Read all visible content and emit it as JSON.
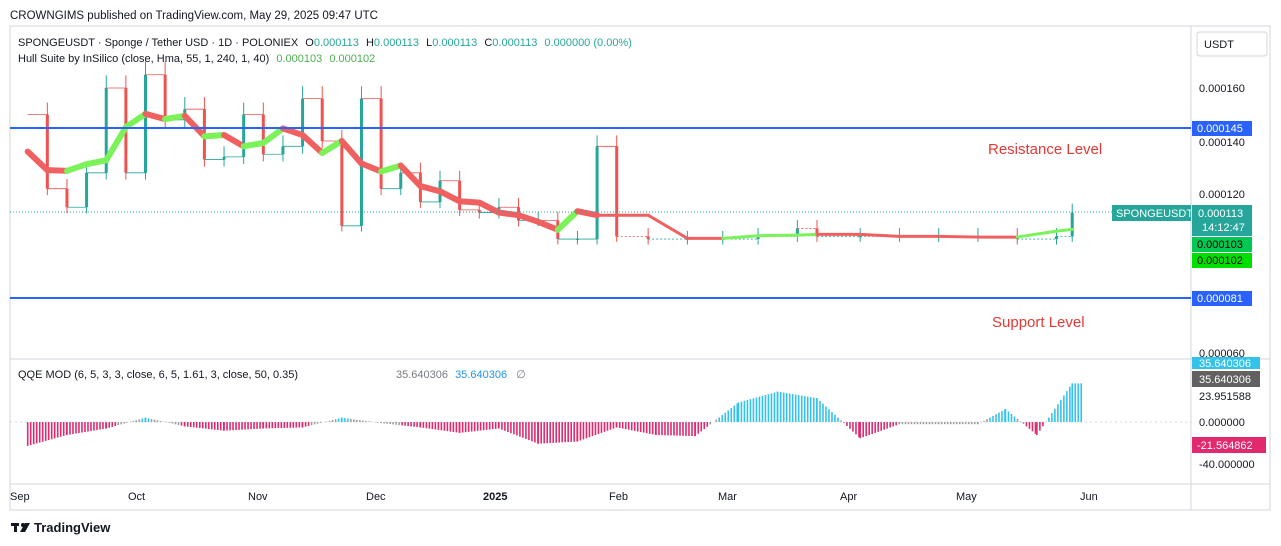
{
  "header": {
    "published": "CROWNGIMS published on TradingView.com, May 29, 2025 09:47 UTC"
  },
  "legend": {
    "symbol_line": "SPONGEUSDT · Sponge / Tether USD · 1D · POLONIEX",
    "open_label": "O",
    "open_value": "0.000113",
    "high_label": "H",
    "high_value": "0.000113",
    "low_label": "L",
    "low_value": "0.000113",
    "close_label": "C",
    "close_value": "0.000113",
    "change": "0.000000 (0.00%)",
    "hull_name": "Hull Suite by InSilico (close, Hma, 55, 1, 240, 1, 40)",
    "hull_val1": "0.000103",
    "hull_val2": "0.000102"
  },
  "qqe": {
    "name": "QQE MOD (6, 5, 3, 3, close, 6, 5, 1.61, 3, close, 50, 0.35)",
    "val1": "35.640306",
    "val2": "35.640306",
    "ticks": [
      "35.640306",
      "23.951588",
      "0.000000",
      "-40.000000"
    ],
    "badge_gray": "35.640306",
    "badge_red": "-21.564862"
  },
  "price_axis": {
    "currency": "USDT",
    "ticks": [
      "0.000160",
      "0.000140",
      "0.000120",
      "0.000060"
    ]
  },
  "badges": {
    "resistance": "0.000145",
    "support": "0.000081",
    "symbol": "SPONGEUSDT",
    "price": "0.000113",
    "countdown": "14:12:47",
    "hull1": "0.000103",
    "hull2": "0.000102"
  },
  "annotations": {
    "resistance": "Resistance Level",
    "support": "Support Level"
  },
  "time_axis": [
    "Sep",
    "Oct",
    "Nov",
    "Dec",
    "2025",
    "Feb",
    "Mar",
    "Apr",
    "May",
    "Jun"
  ],
  "footer": {
    "brand": "TradingView"
  },
  "colors": {
    "up": "#26a69a",
    "down": "#ef5350",
    "level": "#2962ff",
    "hull_up": "#7cf25a",
    "hull_down": "#f06060",
    "qqe_up": "#33c3ea",
    "qqe_down": "#e0296e",
    "qqe_neutral": "#9e9e9e"
  },
  "chart_data": [
    {
      "type": "candlestick",
      "title": "SPONGEUSDT · Sponge / Tether USD · 1D · POLONIEX",
      "x": [
        "Sep",
        "Oct",
        "Nov",
        "Dec",
        "2025",
        "Feb",
        "Mar",
        "Apr",
        "May",
        "Jun"
      ],
      "ylim": [
        5.8e-05,
        0.000172
      ],
      "close_series": [
        {
          "date": "2024-09-05",
          "close": 0.00015
        },
        {
          "date": "2024-09-10",
          "close": 0.000122
        },
        {
          "date": "2024-09-15",
          "close": 0.000115
        },
        {
          "date": "2024-09-20",
          "close": 0.000128
        },
        {
          "date": "2024-09-25",
          "close": 0.00016
        },
        {
          "date": "2024-09-30",
          "close": 0.000128
        },
        {
          "date": "2024-10-05",
          "close": 0.000165
        },
        {
          "date": "2024-10-10",
          "close": 0.000148
        },
        {
          "date": "2024-10-15",
          "close": 0.000152
        },
        {
          "date": "2024-10-20",
          "close": 0.000133
        },
        {
          "date": "2024-10-25",
          "close": 0.000134
        },
        {
          "date": "2024-10-30",
          "close": 0.00015
        },
        {
          "date": "2024-11-04",
          "close": 0.000135
        },
        {
          "date": "2024-11-09",
          "close": 0.000138
        },
        {
          "date": "2024-11-14",
          "close": 0.000156
        },
        {
          "date": "2024-11-19",
          "close": 0.00014
        },
        {
          "date": "2024-11-24",
          "close": 0.000108
        },
        {
          "date": "2024-11-29",
          "close": 0.000156
        },
        {
          "date": "2024-12-04",
          "close": 0.000122
        },
        {
          "date": "2024-12-09",
          "close": 0.000128
        },
        {
          "date": "2024-12-14",
          "close": 0.000117
        },
        {
          "date": "2024-12-19",
          "close": 0.000125
        },
        {
          "date": "2024-12-24",
          "close": 0.000114
        },
        {
          "date": "2024-12-29",
          "close": 0.000113
        },
        {
          "date": "2025-01-03",
          "close": 0.000115
        },
        {
          "date": "2025-01-08",
          "close": 0.00011
        },
        {
          "date": "2025-01-13",
          "close": 0.00011
        },
        {
          "date": "2025-01-18",
          "close": 0.000103
        },
        {
          "date": "2025-01-23",
          "close": 0.000103
        },
        {
          "date": "2025-01-28",
          "close": 0.000138
        },
        {
          "date": "2025-02-02",
          "close": 0.000104
        },
        {
          "date": "2025-02-10",
          "close": 0.000103
        },
        {
          "date": "2025-02-20",
          "close": 0.000103
        },
        {
          "date": "2025-03-01",
          "close": 0.000103
        },
        {
          "date": "2025-03-10",
          "close": 0.000104
        },
        {
          "date": "2025-03-20",
          "close": 0.000107
        },
        {
          "date": "2025-03-25",
          "close": 0.000104
        },
        {
          "date": "2025-04-05",
          "close": 0.000104
        },
        {
          "date": "2025-04-15",
          "close": 0.000104
        },
        {
          "date": "2025-04-25",
          "close": 0.000104
        },
        {
          "date": "2025-05-05",
          "close": 0.000104
        },
        {
          "date": "2025-05-15",
          "close": 0.000103
        },
        {
          "date": "2025-05-25",
          "close": 0.000104
        },
        {
          "date": "2025-05-29",
          "close": 0.000113
        }
      ],
      "levels": [
        {
          "name": "Resistance Level",
          "value": 0.000145
        },
        {
          "name": "Support Level",
          "value": 8.1e-05
        }
      ],
      "series": [
        {
          "name": "Hull Suite by InSilico (close, Hma, 55, 1, 240, 1, 40)",
          "last": [
            0.000103,
            0.000102
          ]
        }
      ],
      "last_price": 0.000113
    },
    {
      "type": "histogram",
      "title": "QQE MOD (6, 5, 3, 3, close, 6, 5, 1.61, 3, close, 50, 0.35)",
      "ylim": [
        -50,
        40
      ],
      "values": [
        {
          "date": "2024-09-05",
          "value": -22
        },
        {
          "date": "2024-09-15",
          "value": -12
        },
        {
          "date": "2024-09-25",
          "value": -6
        },
        {
          "date": "2024-10-05",
          "value": 4
        },
        {
          "date": "2024-10-15",
          "value": -4
        },
        {
          "date": "2024-10-25",
          "value": -8
        },
        {
          "date": "2024-11-04",
          "value": -6
        },
        {
          "date": "2024-11-14",
          "value": -5
        },
        {
          "date": "2024-11-24",
          "value": 4
        },
        {
          "date": "2024-12-04",
          "value": -1
        },
        {
          "date": "2024-12-14",
          "value": -5
        },
        {
          "date": "2024-12-24",
          "value": -10
        },
        {
          "date": "2025-01-03",
          "value": -6
        },
        {
          "date": "2025-01-13",
          "value": -20
        },
        {
          "date": "2025-01-23",
          "value": -18
        },
        {
          "date": "2025-02-02",
          "value": -5
        },
        {
          "date": "2025-02-12",
          "value": -12
        },
        {
          "date": "2025-02-22",
          "value": -13
        },
        {
          "date": "2025-03-05",
          "value": 18
        },
        {
          "date": "2025-03-15",
          "value": 28
        },
        {
          "date": "2025-03-25",
          "value": 22
        },
        {
          "date": "2025-04-05",
          "value": -15
        },
        {
          "date": "2025-04-15",
          "value": -2
        },
        {
          "date": "2025-04-25",
          "value": -2
        },
        {
          "date": "2025-05-05",
          "value": -2
        },
        {
          "date": "2025-05-12",
          "value": 12
        },
        {
          "date": "2025-05-20",
          "value": -12
        },
        {
          "date": "2025-05-29",
          "value": 35.640306
        }
      ]
    }
  ]
}
